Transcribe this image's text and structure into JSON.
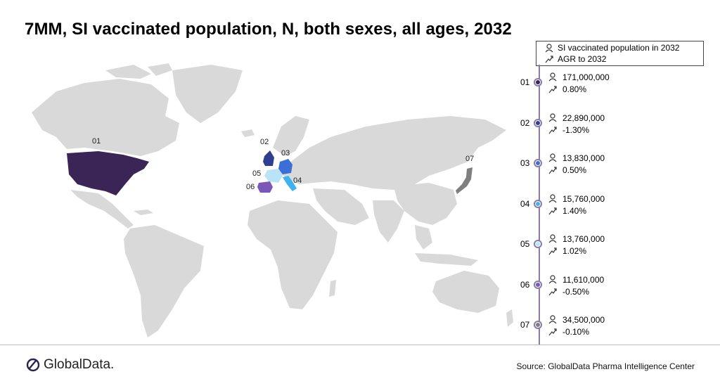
{
  "title": "7MM, SI vaccinated population, N, both sexes, all ages, 2032",
  "legend": {
    "population_label": "SI vaccinated population in 2032",
    "agr_label": "AGR to 2032",
    "population_icon": "person-icon",
    "agr_icon": "trend-arrow-icon"
  },
  "markets": [
    {
      "rank": "01",
      "population": "171,000,000",
      "agr": "0.80%",
      "color": "#3b2556"
    },
    {
      "rank": "02",
      "population": "22,890,000",
      "agr": "-1.30%",
      "color": "#2e3f8f"
    },
    {
      "rank": "03",
      "population": "13,830,000",
      "agr": "0.50%",
      "color": "#3a6fd8"
    },
    {
      "rank": "04",
      "population": "15,760,000",
      "agr": "1.40%",
      "color": "#3fb3ef"
    },
    {
      "rank": "05",
      "population": "13,760,000",
      "agr": "1.02%",
      "color": "#b9e3f7"
    },
    {
      "rank": "06",
      "population": "11,610,000",
      "agr": "-0.50%",
      "color": "#7a57b8"
    },
    {
      "rank": "07",
      "population": "34,500,000",
      "agr": "-0.10%",
      "color": "#7f7f7f"
    }
  ],
  "map_labels": [
    "01",
    "02",
    "03",
    "04",
    "05",
    "06",
    "07"
  ],
  "map_base_color": "#d9d9d9",
  "footer": {
    "brand": "GlobalData.",
    "source": "Source: GlobalData Pharma Intelligence Center"
  }
}
